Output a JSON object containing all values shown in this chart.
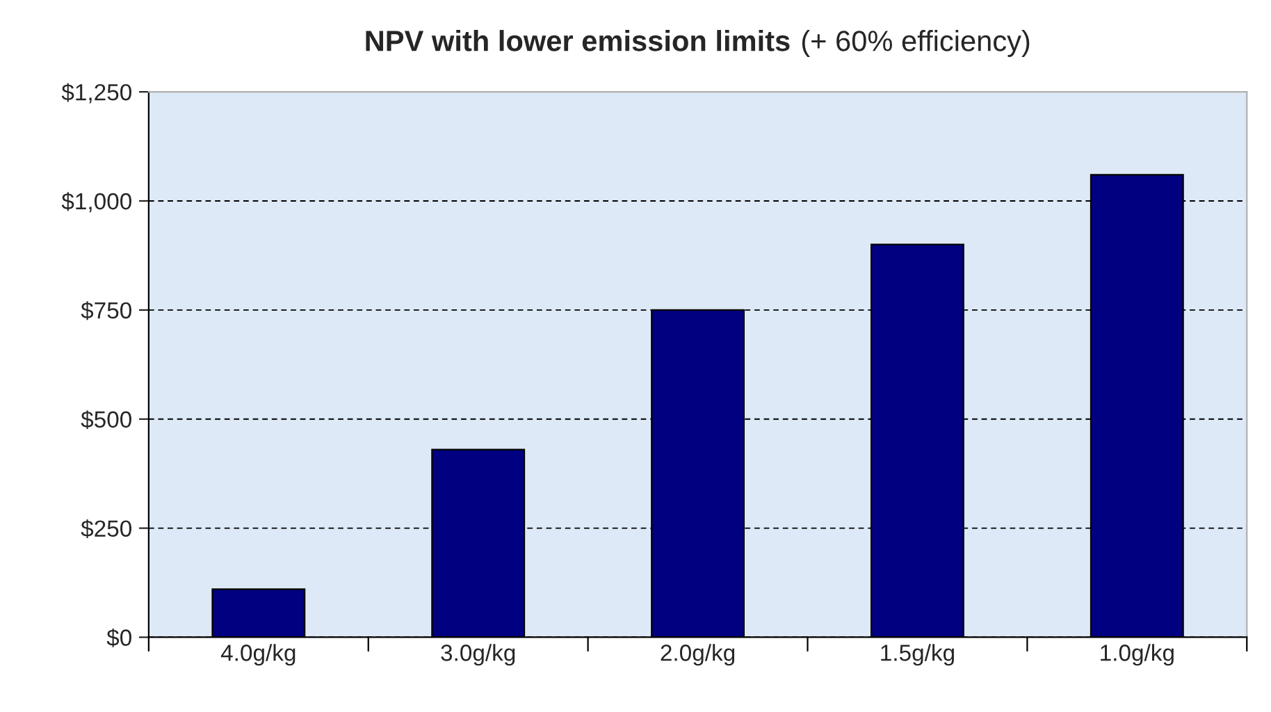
{
  "chart_data": {
    "type": "bar",
    "title": "NPV with lower emission limits",
    "subtitle": "(+ 60% efficiency)",
    "categories": [
      "4.0g/kg",
      "3.0g/kg",
      "2.0g/kg",
      "1.5g/kg",
      "1.0g/kg"
    ],
    "values": [
      110,
      430,
      750,
      900,
      1060
    ],
    "color": "#000080",
    "ylim": [
      0,
      1250
    ],
    "yticks": [
      {
        "value": 0,
        "label": "$0"
      },
      {
        "value": 250,
        "label": "$250"
      },
      {
        "value": 500,
        "label": "$500"
      },
      {
        "value": 750,
        "label": "$750"
      },
      {
        "value": 1000,
        "label": "$1,000"
      },
      {
        "value": 1250,
        "label": "$1,250"
      }
    ],
    "grid": "y",
    "legend": false
  }
}
